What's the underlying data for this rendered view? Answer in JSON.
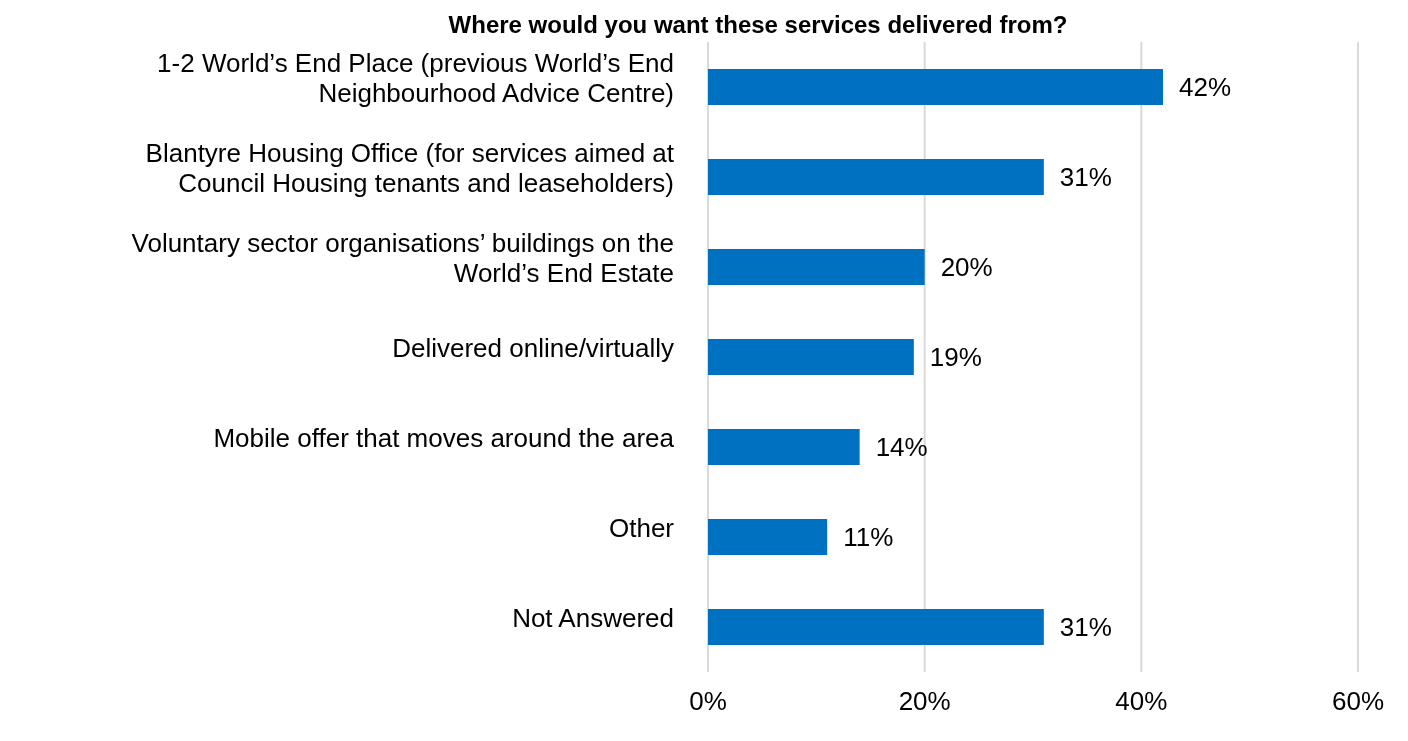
{
  "chart_data": {
    "type": "bar",
    "orientation": "horizontal",
    "title": "Where would you want these services delivered from?",
    "categories": [
      "1-2 World’s End Place (previous World’s End Neighbourhood Advice Centre)",
      "Blantyre Housing Office (for services aimed at Council Housing tenants and leaseholders)",
      "Voluntary sector organisations’ buildings on the World’s End Estate",
      "Delivered online/virtually",
      "Mobile offer that moves around the area",
      "Other",
      "Not Answered"
    ],
    "values": [
      42,
      31,
      20,
      19,
      14,
      11,
      31
    ],
    "value_labels": [
      "42%",
      "31%",
      "20%",
      "19%",
      "14%",
      "11%",
      "31%"
    ],
    "color": "#0070c0",
    "xlim": [
      0,
      60
    ],
    "xticks": [
      {
        "value": 0,
        "label": "0%"
      },
      {
        "value": 20,
        "label": "20%"
      },
      {
        "value": 40,
        "label": "40%"
      },
      {
        "value": 60,
        "label": "60%"
      }
    ],
    "grid": "x",
    "legend": false
  }
}
